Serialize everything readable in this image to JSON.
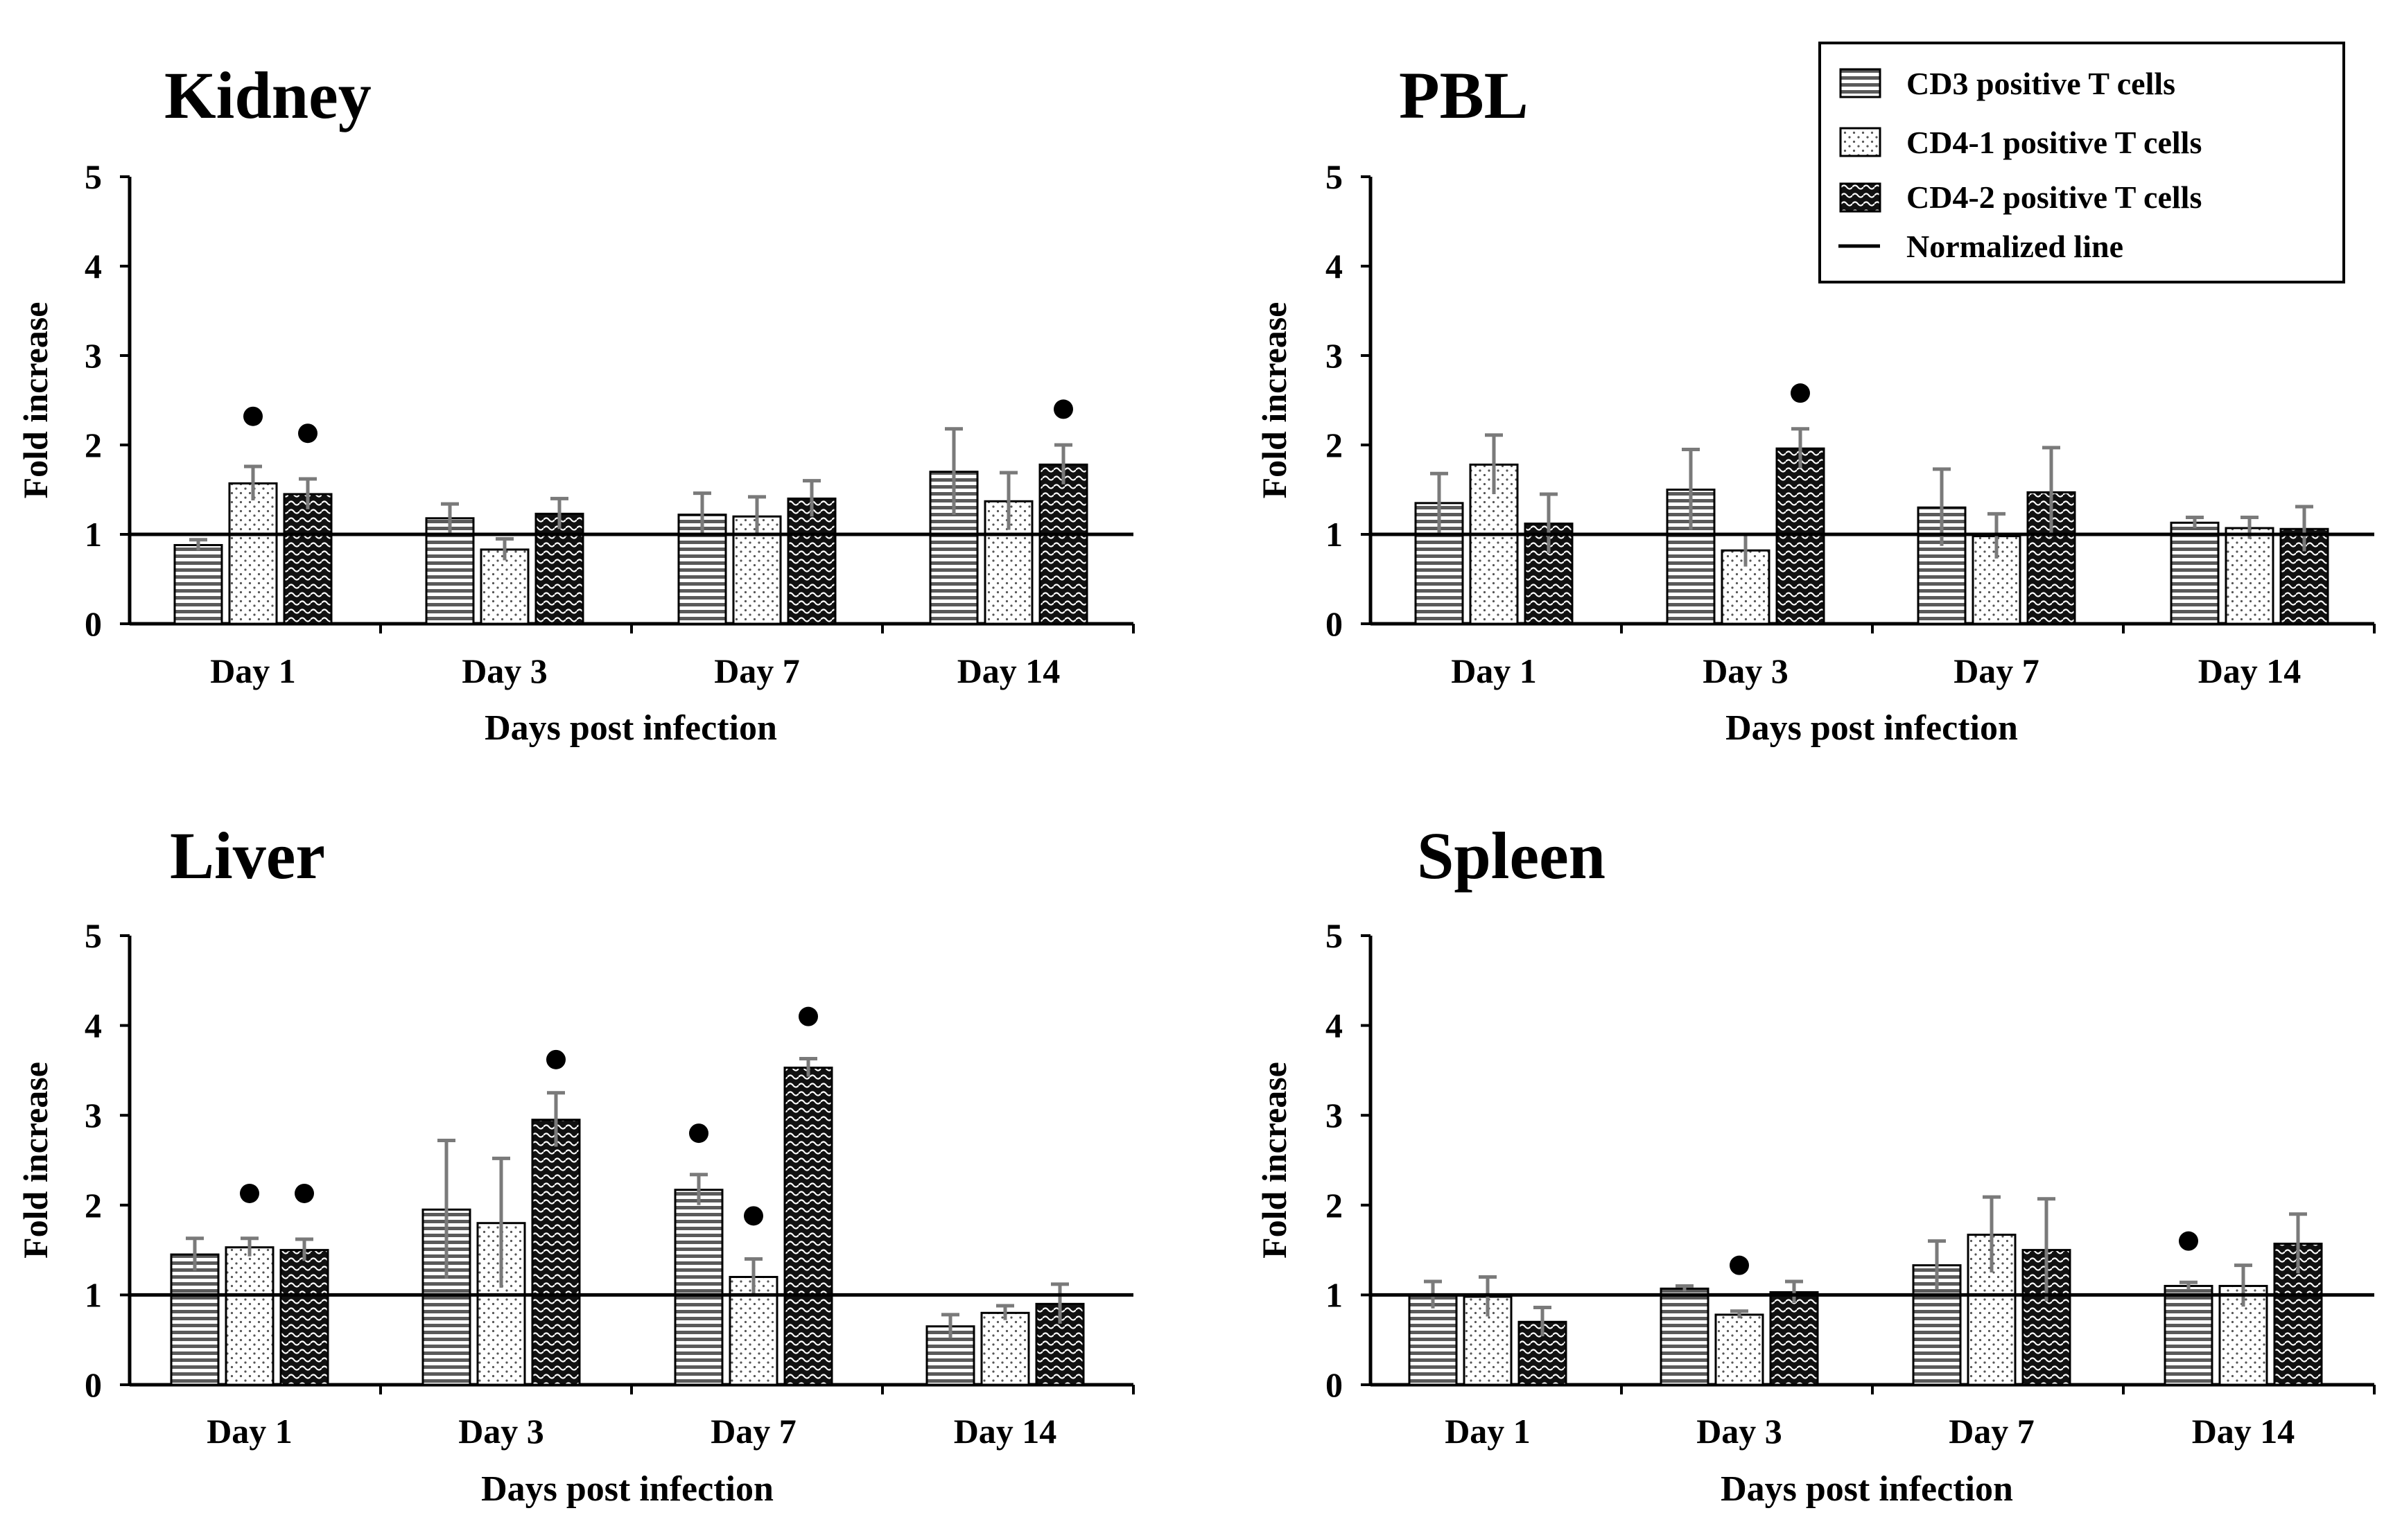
{
  "legend": [
    {
      "key": "cd3",
      "label": "CD3 positive T cells"
    },
    {
      "key": "cd41",
      "label": "CD4-1 positive T cells"
    },
    {
      "key": "cd42",
      "label": "CD4-2 positive T cells"
    },
    {
      "key": "norm",
      "label": "Normalized line"
    }
  ],
  "chart_data": [
    {
      "type": "bar",
      "title": "Kidney",
      "xlabel": "Days post infection",
      "ylabel": "Fold increase",
      "ylim": [
        0,
        5
      ],
      "yticks": [
        0,
        1,
        2,
        3,
        4,
        5
      ],
      "normalized_line": 1,
      "categories": [
        "Day 1",
        "Day 3",
        "Day 7",
        "Day 14"
      ],
      "series": [
        {
          "name": "CD3 positive T cells",
          "values": [
            0.88,
            1.18,
            1.22,
            1.7
          ],
          "errors": [
            0.06,
            0.16,
            0.24,
            0.48
          ]
        },
        {
          "name": "CD4-1 positive T cells",
          "values": [
            1.57,
            0.83,
            1.2,
            1.37
          ],
          "errors": [
            0.19,
            0.12,
            0.22,
            0.32
          ]
        },
        {
          "name": "CD4-2 positive T cells",
          "values": [
            1.45,
            1.23,
            1.4,
            1.78
          ],
          "errors": [
            0.17,
            0.17,
            0.2,
            0.22
          ]
        }
      ],
      "significance": [
        {
          "category": "Day 1",
          "series": "CD4-1 positive T cells",
          "y": 2.32
        },
        {
          "category": "Day 1",
          "series": "CD4-2 positive T cells",
          "y": 2.13
        },
        {
          "category": "Day 14",
          "series": "CD4-2 positive T cells",
          "y": 2.4
        }
      ]
    },
    {
      "type": "bar",
      "title": "PBL",
      "xlabel": "Days post infection",
      "ylabel": "Fold increase",
      "ylim": [
        0,
        5
      ],
      "yticks": [
        0,
        1,
        2,
        3,
        4,
        5
      ],
      "normalized_line": 1,
      "categories": [
        "Day 1",
        "Day 3",
        "Day 7",
        "Day 14"
      ],
      "series": [
        {
          "name": "CD3 positive T cells",
          "values": [
            1.35,
            1.5,
            1.3,
            1.13
          ],
          "errors": [
            0.33,
            0.45,
            0.43,
            0.06
          ]
        },
        {
          "name": "CD4-1 positive T cells",
          "values": [
            1.78,
            0.82,
            0.98,
            1.07
          ],
          "errors": [
            0.33,
            0.18,
            0.25,
            0.12
          ]
        },
        {
          "name": "CD4-2 positive T cells",
          "values": [
            1.12,
            1.96,
            1.47,
            1.06
          ],
          "errors": [
            0.33,
            0.22,
            0.5,
            0.25
          ]
        }
      ],
      "significance": [
        {
          "category": "Day 3",
          "series": "CD4-2 positive T cells",
          "y": 2.58
        }
      ]
    },
    {
      "type": "bar",
      "title": "Liver",
      "xlabel": "Days post infection",
      "ylabel": "Fold increase",
      "ylim": [
        0,
        5
      ],
      "yticks": [
        0,
        1,
        2,
        3,
        4,
        5
      ],
      "normalized_line": 1,
      "categories": [
        "Day 1",
        "Day 3",
        "Day 7",
        "Day 14"
      ],
      "series": [
        {
          "name": "CD3 positive T cells",
          "values": [
            1.45,
            1.95,
            2.17,
            0.65
          ],
          "errors": [
            0.18,
            0.77,
            0.17,
            0.13
          ]
        },
        {
          "name": "CD4-1 positive T cells",
          "values": [
            1.53,
            1.8,
            1.2,
            0.8
          ],
          "errors": [
            0.1,
            0.72,
            0.2,
            0.08
          ]
        },
        {
          "name": "CD4-2 positive T cells",
          "values": [
            1.5,
            2.95,
            3.53,
            0.9
          ],
          "errors": [
            0.12,
            0.3,
            0.1,
            0.22
          ]
        }
      ],
      "significance": [
        {
          "category": "Day 1",
          "series": "CD4-1 positive T cells",
          "y": 2.13
        },
        {
          "category": "Day 1",
          "series": "CD4-2 positive T cells",
          "y": 2.13
        },
        {
          "category": "Day 3",
          "series": "CD4-2 positive T cells",
          "y": 3.62
        },
        {
          "category": "Day 7",
          "series": "CD3 positive T cells",
          "y": 2.8
        },
        {
          "category": "Day 7",
          "series": "CD4-1 positive T cells",
          "y": 1.88
        },
        {
          "category": "Day 7",
          "series": "CD4-2 positive T cells",
          "y": 4.1
        }
      ]
    },
    {
      "type": "bar",
      "title": "Spleen",
      "xlabel": "Days post infection",
      "ylabel": "Fold increase",
      "ylim": [
        0,
        5
      ],
      "yticks": [
        0,
        1,
        2,
        3,
        4,
        5
      ],
      "normalized_line": 1,
      "categories": [
        "Day 1",
        "Day 3",
        "Day 7",
        "Day 14"
      ],
      "series": [
        {
          "name": "CD3 positive T cells",
          "values": [
            1.0,
            1.07,
            1.33,
            1.1
          ],
          "errors": [
            0.15,
            0.03,
            0.27,
            0.04
          ]
        },
        {
          "name": "CD4-1 positive T cells",
          "values": [
            0.98,
            0.78,
            1.67,
            1.1
          ],
          "errors": [
            0.22,
            0.04,
            0.42,
            0.23
          ]
        },
        {
          "name": "CD4-2 positive T cells",
          "values": [
            0.7,
            1.03,
            1.5,
            1.57
          ],
          "errors": [
            0.16,
            0.12,
            0.57,
            0.33
          ]
        }
      ],
      "significance": [
        {
          "category": "Day 3",
          "series": "CD4-1 positive T cells",
          "y": 1.33
        },
        {
          "category": "Day 14",
          "series": "CD3 positive T cells",
          "y": 1.6
        }
      ]
    }
  ]
}
